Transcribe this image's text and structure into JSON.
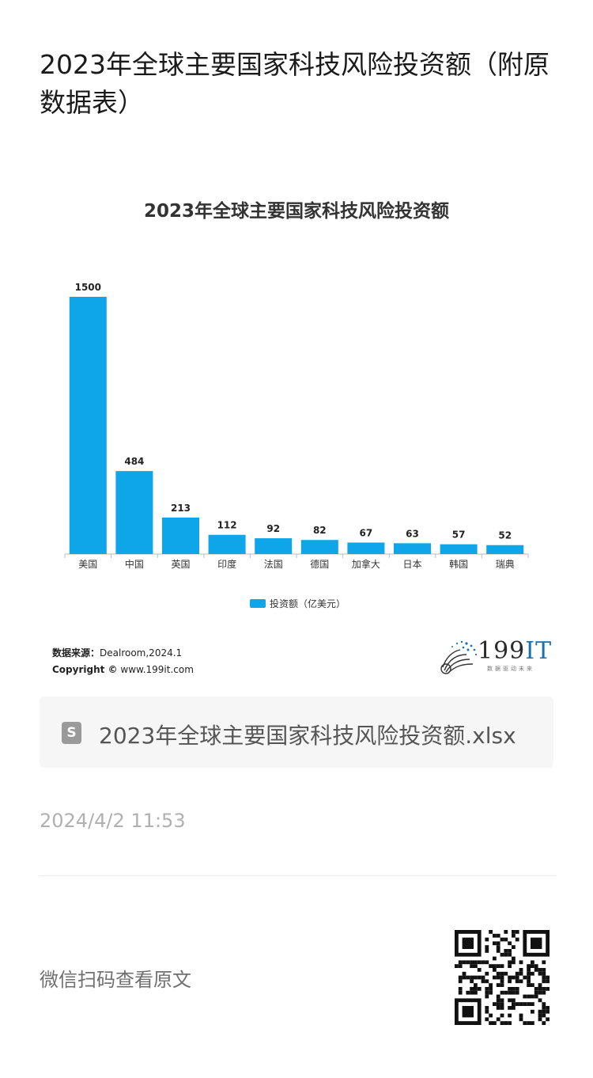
{
  "article": {
    "title": "2023年全球主要国家科技风险投资额（附原数据表）"
  },
  "chart_data": {
    "type": "bar",
    "title": "2023年全球主要国家科技风险投资额",
    "categories": [
      "美国",
      "中国",
      "英国",
      "印度",
      "法国",
      "德国",
      "加拿大",
      "日本",
      "韩国",
      "瑞典"
    ],
    "series": [
      {
        "name": "投资额（亿美元）",
        "values": [
          1500,
          484,
          213,
          112,
          92,
          82,
          67,
          63,
          57,
          52
        ],
        "color": "#0ea5e9"
      }
    ],
    "ylim": [
      0,
      1500
    ],
    "grid": false,
    "legend_position": "bottom",
    "data_labels": true
  },
  "source": {
    "label": "数据来源：",
    "value": "Dealroom,2024.1",
    "copyright_label": "Copyright ©",
    "copyright_value": "www.199it.com"
  },
  "logo": {
    "text_number": "199",
    "text_it": "IT",
    "tagline": "数据驱动未来"
  },
  "attachment": {
    "icon": "spreadsheet-file-icon",
    "glyph": "S",
    "filename": "2023年全球主要国家科技风险投资额.xlsx"
  },
  "meta": {
    "timestamp": "2024/4/2 11:53",
    "scan_hint": "微信扫码查看原文"
  }
}
